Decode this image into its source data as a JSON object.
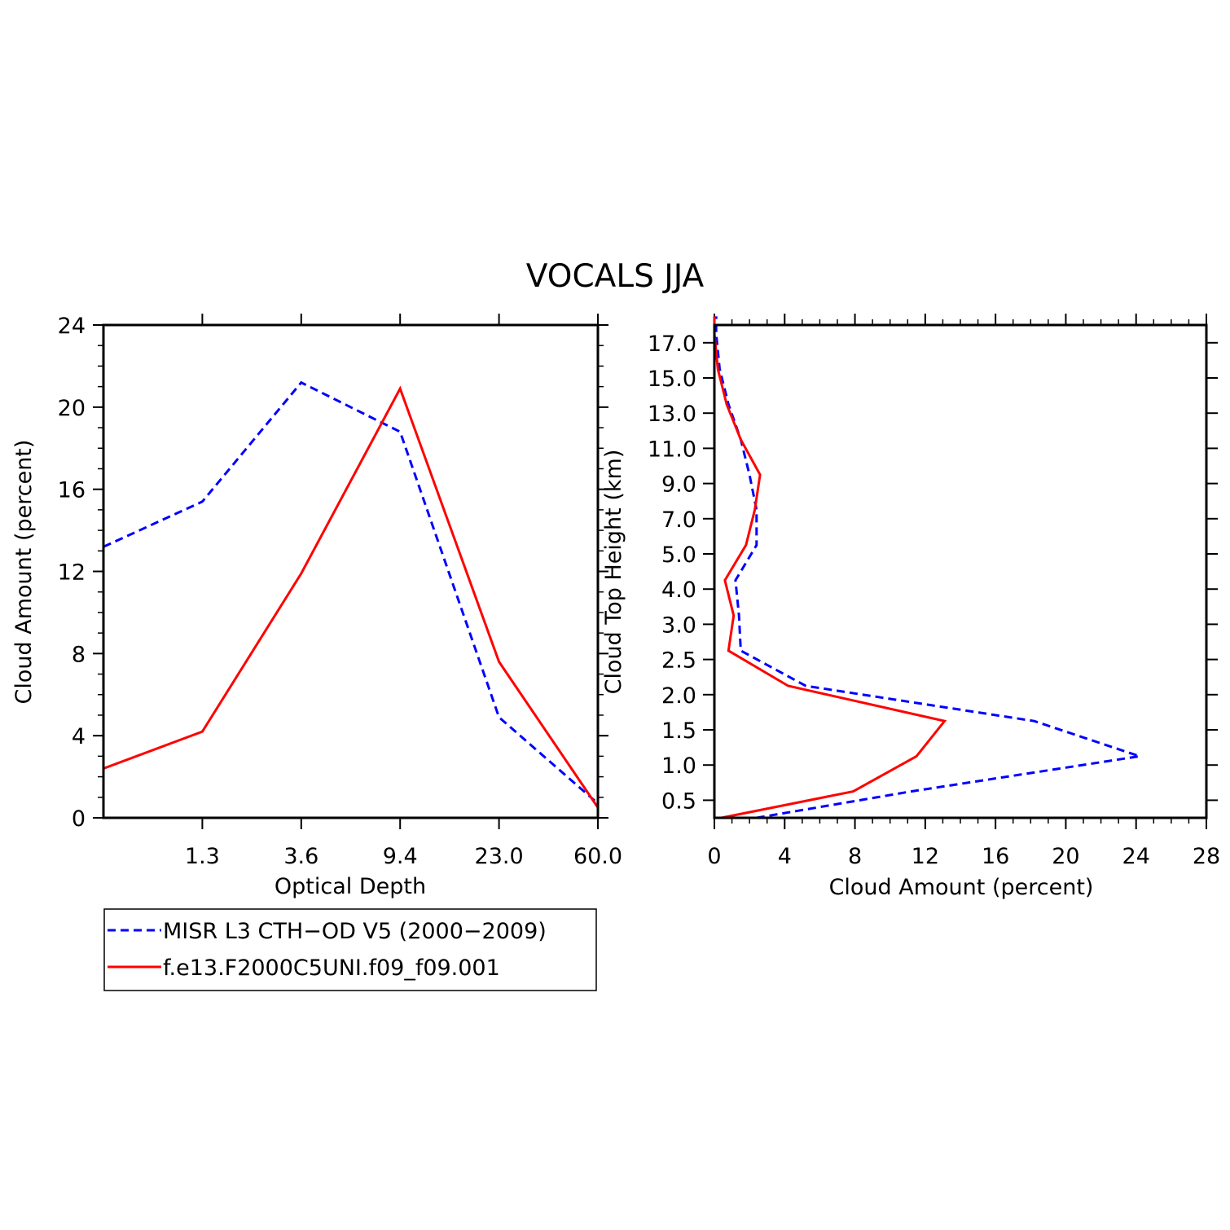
{
  "figure": {
    "title": "VOCALS JJA"
  },
  "legend": {
    "entries": [
      {
        "label": "MISR L3 CTH−OD V5 (2000−2009)",
        "color": "#0000ff",
        "dash": true
      },
      {
        "label": "f.e13.F2000C5UNI.f09_f09.001",
        "color": "#ff0000",
        "dash": false
      }
    ]
  },
  "chart_data": [
    {
      "type": "line",
      "title": "",
      "xlabel": "Optical Depth",
      "ylabel": "Cloud Amount (percent)",
      "x_tick_labels": [
        "1.3",
        "3.6",
        "9.4",
        "23.0",
        "60.0"
      ],
      "y_ticks": [
        0,
        4,
        8,
        12,
        16,
        20,
        24
      ],
      "ylim": [
        0,
        24
      ],
      "bin_centers": [
        1,
        2,
        3,
        4,
        5,
        6
      ],
      "xlim": [
        0.5,
        5.5
      ],
      "grid": false,
      "legend_position": "below",
      "series": [
        {
          "name": "MISR L3 CTH−OD V5 (2000−2009)",
          "color": "#0000ff",
          "dash": true,
          "x": [
            0.5,
            1.5,
            2.5,
            3.5,
            4.5,
            5.5
          ],
          "y": [
            13.2,
            15.4,
            21.2,
            18.8,
            4.9,
            0.7
          ]
        },
        {
          "name": "f.e13.F2000C5UNI.f09_f09.001",
          "color": "#ff0000",
          "dash": false,
          "x": [
            0.5,
            1.5,
            2.5,
            3.5,
            4.5,
            5.5
          ],
          "y": [
            2.4,
            4.2,
            11.9,
            20.9,
            7.6,
            0.5
          ]
        }
      ]
    },
    {
      "type": "line",
      "title": "",
      "xlabel": "Cloud Amount (percent)",
      "ylabel": "Cloud Top Height (km)",
      "x_ticks": [
        0,
        4,
        8,
        12,
        16,
        20,
        24,
        28
      ],
      "xlim": [
        0,
        28
      ],
      "y_tick_labels": [
        "0.5",
        "1.0",
        "1.5",
        "2.0",
        "2.5",
        "3.0",
        "4.0",
        "5.0",
        "7.0",
        "9.0",
        "11.0",
        "13.0",
        "15.0",
        "17.0"
      ],
      "grid": false,
      "series": [
        {
          "name": "MISR L3 CTH−OD V5 (2000−2009)",
          "color": "#0000ff",
          "dash": true,
          "level": [
            0,
            0.75,
            1.75,
            2.75,
            3.75,
            4.75,
            5.75,
            6.75,
            7.75,
            8.75,
            9.75,
            10.75,
            11.75,
            12.75,
            13.75,
            14.25
          ],
          "x": [
            2.4,
            11.2,
            24.2,
            18.2,
            5.2,
            1.5,
            1.4,
            1.2,
            2.4,
            2.4,
            2.0,
            1.5,
            0.8,
            0.3,
            0.1,
            0.1
          ]
        },
        {
          "name": "f.e13.F2000C5UNI.f09_f09.001",
          "color": "#ff0000",
          "dash": false,
          "level": [
            0,
            0.75,
            1.75,
            2.75,
            3.75,
            4.75,
            5.75,
            6.75,
            7.75,
            8.75,
            9.75,
            10.75,
            11.75,
            12.75,
            13.75,
            14.25
          ],
          "x": [
            0.4,
            7.9,
            11.5,
            13.1,
            4.2,
            0.8,
            1.1,
            0.6,
            1.8,
            2.3,
            2.6,
            1.5,
            0.7,
            0.2,
            0.0,
            0.0
          ]
        }
      ]
    }
  ]
}
